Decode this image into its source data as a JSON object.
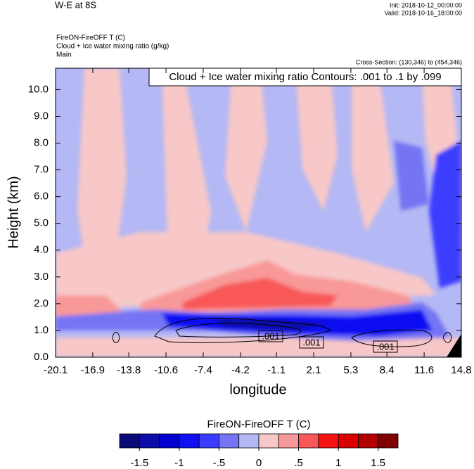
{
  "chart_data": {
    "type": "contour",
    "title": "W-E at 8S",
    "init": "Init: 2018-10-12_00:00:00",
    "valid": "Valid: 2018-10-16_18:00:00",
    "field_title": "FireON-FireOFF T   (C)",
    "overlay_title": "Cloud + Ice water mixing ratio   (g/kg)",
    "group": "Main",
    "cross_section": "Cross-Section: (130,346) to (454,346)",
    "contour_note": "Cloud + Ice water mixing ratio Contours: .001 to .1 by .099",
    "contour_labels": [
      {
        "value": 0.001,
        "label": ".001"
      },
      {
        "value": 0.001,
        "label": ".001"
      },
      {
        "value": 0.001,
        "label": ".001"
      }
    ],
    "xlabel": "longitude",
    "ylabel": "Height (km)",
    "xlim": [
      -20.1,
      14.8
    ],
    "xticks": [
      -20.1,
      -16.9,
      -13.8,
      -10.6,
      -7.4,
      -4.2,
      -1.1,
      2.1,
      5.3,
      8.4,
      11.6,
      14.8
    ],
    "ylim": [
      0,
      10.8
    ],
    "yticks": [
      {
        "value": 0,
        "label": "0.0"
      },
      {
        "value": 1,
        "label": "1.0"
      },
      {
        "value": 2,
        "label": "2.0"
      },
      {
        "value": 3,
        "label": "3.0"
      },
      {
        "value": 4,
        "label": "4.0"
      },
      {
        "value": 5,
        "label": "5.0"
      },
      {
        "value": 6,
        "label": "6.0"
      },
      {
        "value": 7,
        "label": "7.0"
      },
      {
        "value": 8,
        "label": "8.0"
      },
      {
        "value": 9,
        "label": "9.0"
      },
      {
        "value": 10,
        "label": "10.0"
      }
    ],
    "colorbar": {
      "title": "FireON-FireOFF T  (C)",
      "colors": [
        "#0b0b78",
        "#0c0ca8",
        "#0000d0",
        "#1010f4",
        "#3c3cff",
        "#7474f4",
        "#b4b8f4",
        "#f8c8c8",
        "#f89898",
        "#f85858",
        "#f41414",
        "#d80000",
        "#b00000",
        "#800000"
      ],
      "levels": [
        -1.5,
        -1.25,
        -1,
        -0.75,
        -0.5,
        -0.25,
        0,
        0.25,
        0.5,
        0.75,
        1,
        1.25,
        1.5
      ],
      "ticks": [
        -1.5,
        -1,
        {
          "value": -0.5,
          "label": "-.5"
        },
        0,
        {
          "value": 0.5,
          "label": ".5"
        },
        1,
        1.5
      ]
    }
  }
}
